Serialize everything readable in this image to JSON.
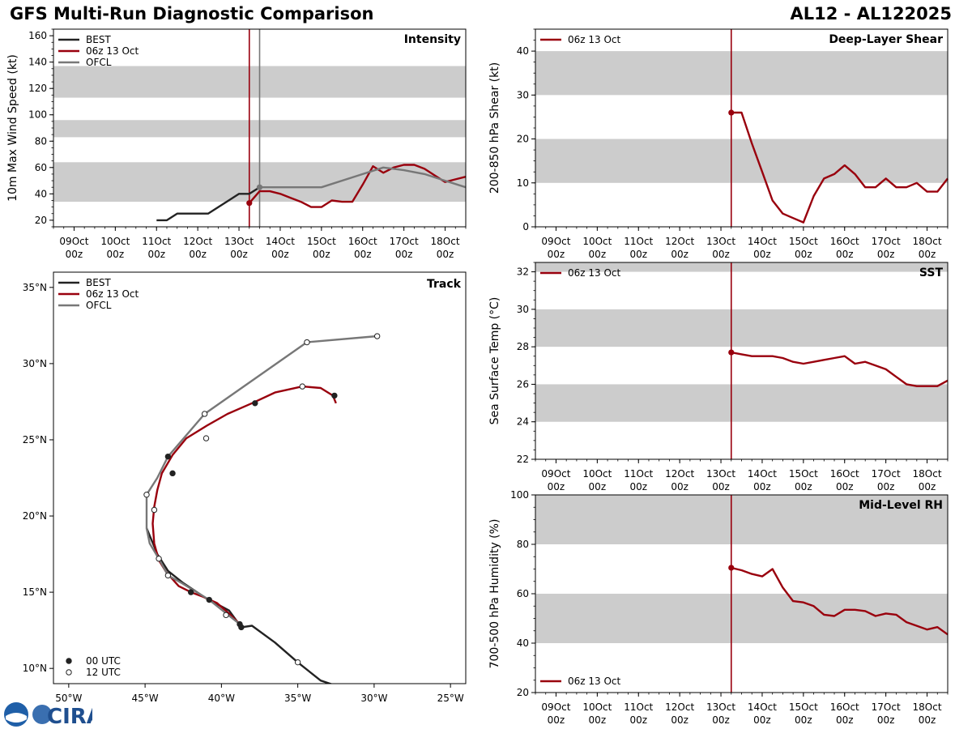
{
  "header": {
    "title_left": "GFS Multi-Run Diagnostic Comparison",
    "title_right": "AL12 - AL122025"
  },
  "colors": {
    "best": "#222222",
    "run": "#99000d",
    "ofcl": "#777777",
    "band": "#cccccc"
  },
  "logo": {
    "text": "CIRA",
    "noaa": "NOAA"
  },
  "chart_data": [
    {
      "id": "intensity",
      "type": "line",
      "title": "Intensity",
      "ylabel": "10m Max Wind Speed (kt)",
      "xlim": [
        -0.5,
        9.5
      ],
      "ylim": [
        15,
        165
      ],
      "yticks": [
        20,
        40,
        60,
        80,
        100,
        120,
        140,
        160
      ],
      "xticks": [
        0,
        1,
        2,
        3,
        4,
        5,
        6,
        7,
        8,
        9
      ],
      "xticklabels": [
        [
          "09Oct",
          "00z"
        ],
        [
          "10Oct",
          "00z"
        ],
        [
          "11Oct",
          "00z"
        ],
        [
          "12Oct",
          "00z"
        ],
        [
          "13Oct",
          "00z"
        ],
        [
          "14Oct",
          "00z"
        ],
        [
          "15Oct",
          "00z"
        ],
        [
          "16Oct",
          "00z"
        ],
        [
          "17Oct",
          "00z"
        ],
        [
          "18Oct",
          "00z"
        ]
      ],
      "bands": [
        [
          34,
          64
        ],
        [
          83,
          96
        ],
        [
          113,
          137
        ]
      ],
      "vlines": [
        {
          "x": 4.25,
          "series": "run"
        },
        {
          "x": 4.5,
          "series": "ofcl"
        }
      ],
      "legend": [
        "BEST",
        "06z 13 Oct",
        "OFCL"
      ],
      "series": [
        {
          "name": "BEST",
          "color": "best",
          "x": [
            2.0,
            2.25,
            2.5,
            2.75,
            3.0,
            3.25,
            3.5,
            3.75,
            4.0,
            4.25,
            4.5
          ],
          "y": [
            20,
            20,
            25,
            25,
            25,
            25,
            30,
            35,
            40,
            40,
            45
          ]
        },
        {
          "name": "06z 13 Oct",
          "color": "run",
          "marker": "start",
          "x": [
            4.25,
            4.5,
            4.75,
            5.0,
            5.25,
            5.5,
            5.75,
            6.0,
            6.25,
            6.5,
            6.75,
            7.0,
            7.25,
            7.5,
            7.75,
            8.0,
            8.25,
            8.5,
            8.75,
            9.0,
            9.25,
            9.5
          ],
          "y": [
            33,
            42,
            42,
            40,
            37,
            34,
            30,
            30,
            35,
            34,
            34,
            47,
            61,
            56,
            60,
            62,
            62,
            59,
            54,
            49,
            51,
            53
          ]
        },
        {
          "name": "OFCL",
          "color": "ofcl",
          "marker": "start",
          "x": [
            4.5,
            5.0,
            6.0,
            7.0,
            7.5,
            8.0,
            8.5,
            9.0,
            9.5
          ],
          "y": [
            45,
            45,
            45,
            55,
            60,
            58,
            55,
            50,
            45
          ]
        }
      ]
    },
    {
      "id": "shear",
      "type": "line",
      "title": "Deep-Layer Shear",
      "ylabel": "200-850 hPa Shear (kt)",
      "xlim": [
        -0.5,
        9.5
      ],
      "ylim": [
        0,
        45
      ],
      "yticks": [
        0,
        10,
        20,
        30,
        40
      ],
      "xticks": [
        0,
        1,
        2,
        3,
        4,
        5,
        6,
        7,
        8,
        9
      ],
      "xticklabels": [
        [
          "09Oct",
          "00z"
        ],
        [
          "10Oct",
          "00z"
        ],
        [
          "11Oct",
          "00z"
        ],
        [
          "12Oct",
          "00z"
        ],
        [
          "13Oct",
          "00z"
        ],
        [
          "14Oct",
          "00z"
        ],
        [
          "15Oct",
          "00z"
        ],
        [
          "16Oct",
          "00z"
        ],
        [
          "17Oct",
          "00z"
        ],
        [
          "18Oct",
          "00z"
        ]
      ],
      "bands": [
        [
          10,
          20
        ],
        [
          30,
          40
        ]
      ],
      "vlines": [
        {
          "x": 4.25,
          "series": "run"
        }
      ],
      "legend": [
        "06z 13 Oct"
      ],
      "series": [
        {
          "name": "06z 13 Oct",
          "color": "run",
          "marker": "start",
          "x": [
            4.25,
            4.5,
            4.75,
            5.0,
            5.25,
            5.5,
            5.75,
            6.0,
            6.25,
            6.5,
            6.75,
            7.0,
            7.25,
            7.5,
            7.75,
            8.0,
            8.25,
            8.5,
            8.75,
            9.0,
            9.25,
            9.5
          ],
          "y": [
            26,
            26,
            19,
            12.5,
            6,
            3,
            2,
            1,
            7,
            11,
            12,
            14,
            12,
            9,
            9,
            11,
            9,
            9,
            10,
            8,
            8,
            11
          ]
        }
      ]
    },
    {
      "id": "sst",
      "type": "line",
      "title": "SST",
      "ylabel": "Sea Surface Temp (°C)",
      "xlim": [
        -0.5,
        9.5
      ],
      "ylim": [
        22,
        32.5
      ],
      "yticks": [
        22,
        24,
        26,
        28,
        30,
        32
      ],
      "xticks": [
        0,
        1,
        2,
        3,
        4,
        5,
        6,
        7,
        8,
        9
      ],
      "xticklabels": [
        [
          "09Oct",
          "00z"
        ],
        [
          "10Oct",
          "00z"
        ],
        [
          "11Oct",
          "00z"
        ],
        [
          "12Oct",
          "00z"
        ],
        [
          "13Oct",
          "00z"
        ],
        [
          "14Oct",
          "00z"
        ],
        [
          "15Oct",
          "00z"
        ],
        [
          "16Oct",
          "00z"
        ],
        [
          "17Oct",
          "00z"
        ],
        [
          "18Oct",
          "00z"
        ]
      ],
      "bands": [
        [
          24,
          26
        ],
        [
          28,
          30
        ],
        [
          32,
          32.5
        ]
      ],
      "vlines": [
        {
          "x": 4.25,
          "series": "run"
        }
      ],
      "legend": [
        "06z 13 Oct"
      ],
      "series": [
        {
          "name": "06z 13 Oct",
          "color": "run",
          "marker": "start",
          "x": [
            4.25,
            4.5,
            4.75,
            5.0,
            5.25,
            5.5,
            5.75,
            6.0,
            6.25,
            6.5,
            6.75,
            7.0,
            7.25,
            7.5,
            7.75,
            8.0,
            8.25,
            8.5,
            8.75,
            9.0,
            9.25,
            9.5
          ],
          "y": [
            27.7,
            27.6,
            27.5,
            27.5,
            27.5,
            27.4,
            27.2,
            27.1,
            27.2,
            27.3,
            27.4,
            27.5,
            27.1,
            27.2,
            27.0,
            26.8,
            26.4,
            26.0,
            25.9,
            25.9,
            25.9,
            26.2
          ]
        }
      ]
    },
    {
      "id": "rh",
      "type": "line",
      "title": "Mid-Level RH",
      "ylabel": "700-500 hPa Humidity (%)",
      "xlim": [
        -0.5,
        9.5
      ],
      "ylim": [
        20,
        100
      ],
      "yticks": [
        20,
        40,
        60,
        80,
        100
      ],
      "xticks": [
        0,
        1,
        2,
        3,
        4,
        5,
        6,
        7,
        8,
        9
      ],
      "xticklabels": [
        [
          "09Oct",
          "00z"
        ],
        [
          "10Oct",
          "00z"
        ],
        [
          "11Oct",
          "00z"
        ],
        [
          "12Oct",
          "00z"
        ],
        [
          "13Oct",
          "00z"
        ],
        [
          "14Oct",
          "00z"
        ],
        [
          "15Oct",
          "00z"
        ],
        [
          "16Oct",
          "00z"
        ],
        [
          "17Oct",
          "00z"
        ],
        [
          "18Oct",
          "00z"
        ]
      ],
      "bands": [
        [
          40,
          60
        ],
        [
          80,
          100
        ]
      ],
      "vlines": [
        {
          "x": 4.25,
          "series": "run"
        }
      ],
      "legend": [
        "06z 13 Oct"
      ],
      "series": [
        {
          "name": "06z 13 Oct",
          "color": "run",
          "marker": "start",
          "x": [
            4.25,
            4.5,
            4.75,
            5.0,
            5.25,
            5.5,
            5.75,
            6.0,
            6.25,
            6.5,
            6.75,
            7.0,
            7.25,
            7.5,
            7.75,
            8.0,
            8.25,
            8.5,
            8.75,
            9.0,
            9.25,
            9.5
          ],
          "y": [
            70.5,
            69.5,
            68,
            67,
            70,
            62.5,
            57,
            56.5,
            55,
            51.5,
            51,
            53.5,
            53.5,
            53,
            51,
            52,
            51.5,
            48.5,
            47,
            45.5,
            46.5,
            43.5
          ]
        }
      ]
    },
    {
      "id": "track",
      "type": "scatter",
      "title": "Track",
      "xlim": [
        -51,
        -24
      ],
      "ylim": [
        9,
        36
      ],
      "xticks": [
        -50,
        -45,
        -40,
        -35,
        -30,
        -25
      ],
      "xticklabels": [
        "50°W",
        "45°W",
        "40°W",
        "35°W",
        "30°W",
        "25°W"
      ],
      "yticks": [
        10,
        15,
        20,
        25,
        30,
        35
      ],
      "yticklabels": [
        "10°N",
        "15°N",
        "20°N",
        "25°N",
        "30°N",
        "35°N"
      ],
      "legend": [
        "BEST",
        "06z 13 Oct",
        "OFCL"
      ],
      "marker_legend": [
        "00 UTC",
        "12 UTC"
      ],
      "series": [
        {
          "name": "BEST",
          "color": "best",
          "lon": [
            -32.6,
            -33.5,
            -35.0,
            -36.5,
            -38.0,
            -38.7,
            -39.5,
            -41.0,
            -42.5,
            -43.5,
            -44.2,
            -44.4,
            -44.9
          ],
          "lat": [
            8.9,
            9.2,
            10.4,
            11.7,
            12.8,
            12.7,
            13.8,
            14.6,
            15.6,
            16.4,
            17.5,
            18.0,
            19.2
          ],
          "markers": [
            [
              -35.0,
              10.4,
              "12"
            ],
            [
              -38.7,
              12.7,
              "00"
            ],
            [
              -39.7,
              13.5,
              "12"
            ]
          ]
        },
        {
          "name": "06z 13 Oct",
          "color": "run",
          "lon": [
            -38.8,
            -39.5,
            -40.3,
            -41.2,
            -42.0,
            -42.8,
            -43.6,
            -44.1,
            -44.4,
            -44.5,
            -44.4,
            -44.2,
            -43.9,
            -43.2,
            -42.3,
            -41.0,
            -39.6,
            -38.0,
            -36.5,
            -34.7,
            -33.5,
            -32.7,
            -32.5
          ],
          "lat": [
            12.9,
            13.6,
            14.3,
            14.7,
            15.0,
            15.4,
            16.3,
            17.1,
            18.2,
            19.5,
            20.6,
            21.7,
            22.8,
            24.0,
            25.1,
            25.9,
            26.7,
            27.4,
            28.1,
            28.5,
            28.4,
            27.9,
            27.4
          ],
          "markers": [
            [
              -38.8,
              12.9,
              "00"
            ],
            [
              -42.0,
              15.0,
              "00"
            ],
            [
              -43.2,
              22.8,
              "00"
            ],
            [
              -41.0,
              25.1,
              "12"
            ],
            [
              -37.8,
              27.4,
              "00"
            ],
            [
              -34.7,
              28.5,
              "12"
            ],
            [
              -32.6,
              27.9,
              "00"
            ]
          ]
        },
        {
          "name": "OFCL",
          "color": "ofcl",
          "lon": [
            -38.8,
            -40.8,
            -42.6,
            -43.5,
            -44.1,
            -44.7,
            -44.9,
            -44.9,
            -44.2,
            -43.5,
            -41.1,
            -34.4,
            -29.8
          ],
          "lat": [
            12.9,
            14.5,
            15.6,
            16.1,
            17.2,
            18.2,
            19.2,
            21.4,
            22.5,
            23.9,
            26.7,
            31.4,
            31.8
          ],
          "markers": [
            [
              -40.8,
              14.5,
              "00"
            ],
            [
              -43.5,
              16.1,
              "12"
            ],
            [
              -44.1,
              17.2,
              "12"
            ],
            [
              -44.4,
              20.4,
              "12"
            ],
            [
              -44.9,
              21.4,
              "12"
            ],
            [
              -43.5,
              23.9,
              "00"
            ],
            [
              -41.1,
              26.7,
              "12"
            ],
            [
              -34.4,
              31.4,
              "12"
            ],
            [
              -29.8,
              31.8,
              "12"
            ]
          ]
        }
      ]
    }
  ]
}
